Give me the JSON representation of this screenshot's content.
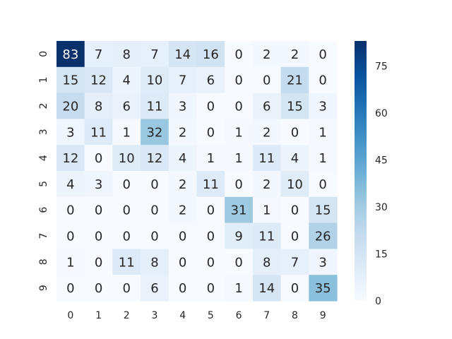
{
  "chart_data": {
    "type": "heatmap",
    "title": "",
    "xlabel": "",
    "ylabel": "",
    "x_tick_labels": [
      "0",
      "1",
      "2",
      "3",
      "4",
      "5",
      "6",
      "7",
      "8",
      "9"
    ],
    "y_tick_labels": [
      "0",
      "1",
      "2",
      "3",
      "4",
      "5",
      "6",
      "7",
      "8",
      "9"
    ],
    "matrix": [
      [
        83,
        7,
        8,
        7,
        14,
        16,
        0,
        2,
        2,
        0
      ],
      [
        15,
        12,
        4,
        10,
        7,
        6,
        0,
        0,
        21,
        0
      ],
      [
        20,
        8,
        6,
        11,
        3,
        0,
        0,
        6,
        15,
        3
      ],
      [
        3,
        11,
        1,
        32,
        2,
        0,
        1,
        2,
        0,
        1
      ],
      [
        12,
        0,
        10,
        12,
        4,
        1,
        1,
        11,
        4,
        1
      ],
      [
        4,
        3,
        0,
        0,
        2,
        11,
        0,
        2,
        10,
        0
      ],
      [
        0,
        0,
        0,
        0,
        2,
        0,
        31,
        1,
        0,
        15
      ],
      [
        0,
        0,
        0,
        0,
        0,
        0,
        9,
        11,
        0,
        26
      ],
      [
        1,
        0,
        11,
        8,
        0,
        0,
        0,
        8,
        7,
        3
      ],
      [
        0,
        0,
        0,
        6,
        0,
        0,
        1,
        14,
        0,
        35
      ]
    ],
    "colormap": "Blues",
    "annotated": true,
    "colorbar": {
      "range": [
        0,
        83
      ],
      "ticks": [
        0,
        15,
        30,
        45,
        60,
        75
      ],
      "tick_labels": [
        "0",
        "15",
        "30",
        "45",
        "60",
        "75"
      ]
    }
  }
}
